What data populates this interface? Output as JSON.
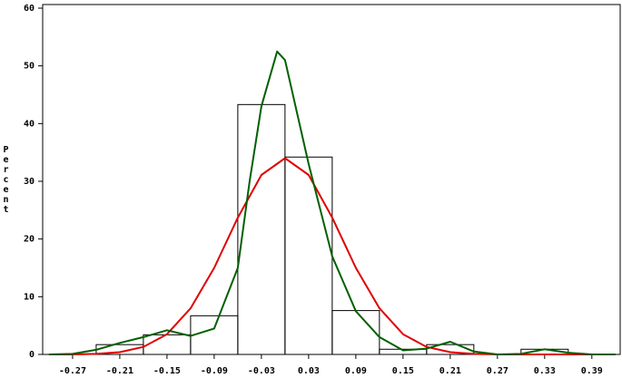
{
  "chart_data": {
    "type": "histogram",
    "y_label": "Percent",
    "bins": [
      -0.24,
      -0.18,
      -0.12,
      -0.06,
      0,
      0.06,
      0.12,
      0.18,
      0.24,
      0.3,
      0.36
    ],
    "values": [
      1.7,
      3.4,
      6.7,
      43.3,
      34.2,
      7.6,
      0.9,
      1.7,
      0,
      0.9
    ],
    "color": "#000000",
    "xlim": [
      -0.308,
      0.426
    ],
    "ylim": [
      0,
      60
    ],
    "xticks": [
      -0.27,
      -0.21,
      -0.15,
      -0.09,
      -0.03,
      0.03,
      0.09,
      0.15,
      0.21,
      0.27,
      0.33,
      0.39
    ],
    "yticks": [
      0,
      10,
      20,
      30,
      40,
      50,
      60
    ],
    "curves": [
      {
        "color": "#e00000",
        "x": [
          -0.3,
          -0.27,
          -0.24,
          -0.21,
          -0.18,
          -0.15,
          -0.12,
          -0.09,
          -0.06,
          -0.03,
          0,
          0.03,
          0.06,
          0.09,
          0.12,
          0.15,
          0.18,
          0.21,
          0.24,
          0.27,
          0.3,
          0.33,
          0.36,
          0.39,
          0.42
        ],
        "values": [
          0,
          0,
          0.1,
          0.4,
          1.3,
          3.5,
          8.0,
          15.0,
          23.7,
          31.1,
          34,
          31.1,
          23.7,
          15.0,
          8.0,
          3.5,
          1.3,
          0.4,
          0.1,
          0,
          0,
          0,
          0,
          0,
          0
        ]
      },
      {
        "color": "#006000",
        "x": [
          -0.3,
          -0.27,
          -0.24,
          -0.21,
          -0.18,
          -0.15,
          -0.12,
          -0.09,
          -0.06,
          -0.045,
          -0.03,
          -0.01,
          0,
          0.03,
          0.06,
          0.09,
          0.12,
          0.15,
          0.18,
          0.21,
          0.24,
          0.27,
          0.3,
          0.33,
          0.36,
          0.39,
          0.42
        ],
        "values": [
          0,
          0.1,
          0.8,
          2.0,
          3.0,
          4.2,
          3.2,
          4.5,
          15,
          30,
          43,
          52.5,
          51,
          33,
          17,
          7.5,
          3,
          0.7,
          1.0,
          2.2,
          0.5,
          0,
          0.1,
          0.9,
          0.3,
          0,
          0
        ]
      }
    ]
  }
}
